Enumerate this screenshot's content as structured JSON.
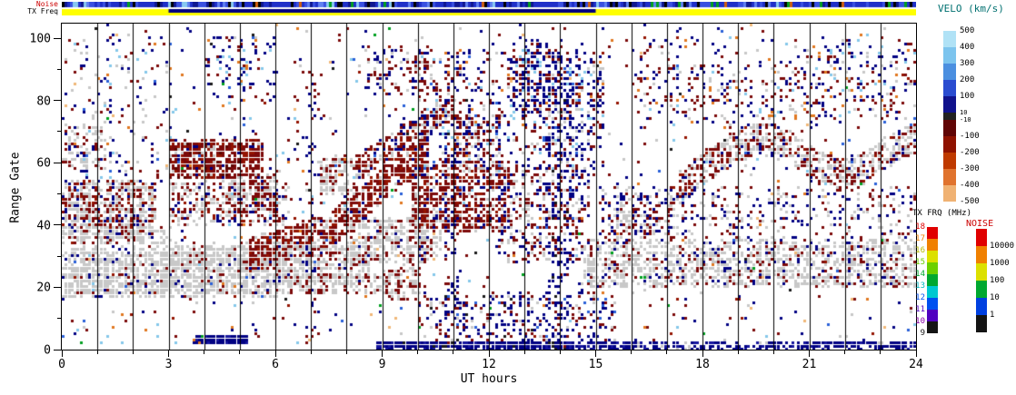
{
  "axes": {
    "x_label": "UT hours",
    "y_label": "Range Gate",
    "x_major": [
      0,
      3,
      6,
      9,
      12,
      15,
      18,
      21,
      24
    ],
    "x_tick_labels": [
      "0",
      "3",
      "6",
      "9",
      "12",
      "15",
      "18",
      "21",
      "24"
    ],
    "x_minor_step": 1,
    "y_major": [
      0,
      20,
      40,
      60,
      80,
      100
    ],
    "y_tick_labels": [
      "0",
      "20",
      "40",
      "60",
      "80",
      "100"
    ],
    "y_minor": [
      10,
      30,
      50,
      70,
      90
    ]
  },
  "strips": {
    "noise_label": "Noise",
    "noise_label_color": "#cc0000",
    "txfreq_label": "TX Freq",
    "txfreq_label_color": "#000000",
    "noise_strip_colors": [
      [
        "#2030c8",
        0.42
      ],
      [
        "#3a50e0",
        0.2
      ],
      [
        "#101890",
        0.12
      ],
      [
        "#000000",
        0.1
      ],
      [
        "#6080f0",
        0.06
      ],
      [
        "#88c8f0",
        0.05
      ],
      [
        "#00a020",
        0.025
      ],
      [
        "#d06010",
        0.025
      ]
    ],
    "txfreq_strip": {
      "base_color": "#ffff00",
      "overlay": {
        "t": [
          3,
          15
        ],
        "color": "#000080"
      }
    }
  },
  "legends": {
    "velocity": {
      "title": "VELO (km/s)",
      "title_color": "#007070",
      "labels": [
        "500",
        "400",
        "300",
        "200",
        "100",
        "10",
        "-10",
        "-100",
        "-200",
        "-300",
        "-400",
        "-500"
      ],
      "small_label_indices": [
        5,
        6
      ],
      "segment_colors": [
        "#b0e2f6",
        "#7cc4ee",
        "#4b8fe0",
        "#2a4cd0",
        "#10128c",
        "#222222",
        "#600505",
        "#8f1200",
        "#bf3a00",
        "#e0732e",
        "#f0b273"
      ],
      "segment_heights": [
        18,
        18,
        18,
        18,
        18,
        8,
        18,
        18,
        18,
        18,
        18
      ]
    },
    "txfreq": {
      "title": "TX FRQ (MHz)",
      "title_color": "#000000",
      "labels": [
        "18",
        "17",
        "16",
        "15",
        "14",
        "13",
        "12",
        "11",
        "10",
        "9"
      ],
      "segment_colors": [
        "#e00000",
        "#f08000",
        "#dce000",
        "#6cd000",
        "#00a830",
        "#00c8d0",
        "#0050f0",
        "#5000c0",
        "#141414"
      ],
      "label_colors": [
        "#e00000",
        "#f08000",
        "#b8bc00",
        "#6cd000",
        "#00a830",
        "#00b8c0",
        "#0050f0",
        "#5000c0",
        "#8800a8",
        "#141414"
      ]
    },
    "noise": {
      "title": "NOISE",
      "title_color": "#cc0000",
      "labels": [
        "10000",
        "1000",
        "100",
        "10",
        "1"
      ],
      "label_color": "#000000",
      "segment_colors": [
        "#e00000",
        "#f08000",
        "#dce000",
        "#00a830",
        "#0040e0",
        "#141414"
      ]
    }
  },
  "chart_data": {
    "type": "scatter",
    "xlabel": "UT hours",
    "ylabel": "Range Gate",
    "xlim": [
      0,
      24
    ],
    "ylim": [
      0,
      105
    ],
    "hour_gridlines": true,
    "legend_title": "VELO (km/s)",
    "velocity_scale_labels": [
      500,
      400,
      300,
      200,
      100,
      10,
      -10,
      -100,
      -200,
      -300,
      -400,
      -500
    ],
    "palette": {
      "gs": "#c8c8c8",
      "red": "#7c0a0a",
      "red2": "#941400",
      "dred": "#5a0500",
      "navy": "#000082",
      "navy2": "#16169e",
      "blue": "#2a60d8",
      "lblue": "#85c8ea",
      "org": "#e07820",
      "tan": "#f0b878",
      "blk": "#1a1a1a",
      "grn": "#00a020"
    },
    "bands": [
      {
        "t": [
          0,
          2.6
        ],
        "g": [
          36,
          54
        ],
        "n": 700,
        "mix": [
          [
            "gs",
            0.5
          ],
          [
            "red",
            0.3
          ],
          [
            "red2",
            0.08
          ],
          [
            "navy",
            0.12
          ]
        ]
      },
      {
        "t": [
          0,
          6.2
        ],
        "g": [
          17,
          32
        ],
        "n": 1400,
        "mix": [
          [
            "gs",
            0.9
          ],
          [
            "navy",
            0.06
          ],
          [
            "red",
            0.04
          ]
        ]
      },
      {
        "t": [
          2.8,
          6.2
        ],
        "g": [
          24,
          34
        ],
        "n": 280,
        "mix": [
          [
            "gs",
            0.85
          ],
          [
            "red",
            0.15
          ]
        ]
      },
      {
        "t": [
          3.0,
          5.6
        ],
        "g": [
          55,
          67
        ],
        "n": 600,
        "mix": [
          [
            "red",
            0.62
          ],
          [
            "red2",
            0.2
          ],
          [
            "dred",
            0.08
          ],
          [
            "gs",
            0.06
          ],
          [
            "navy",
            0.04
          ]
        ]
      },
      {
        "t": [
          3.0,
          6.3
        ],
        "g": [
          40,
          54
        ],
        "n": 330,
        "mix": [
          [
            "red",
            0.45
          ],
          [
            "red2",
            0.12
          ],
          [
            "gs",
            0.33
          ],
          [
            "navy",
            0.1
          ]
        ]
      },
      {
        "path": [
          [
            5.2,
            30
          ],
          [
            6.5,
            34
          ],
          [
            7.5,
            38
          ],
          [
            8.5,
            48
          ],
          [
            9.5,
            58
          ],
          [
            10.3,
            64
          ]
        ],
        "th": 11,
        "n": 900,
        "mix": [
          [
            "red",
            0.6
          ],
          [
            "red2",
            0.22
          ],
          [
            "gs",
            0.13
          ],
          [
            "navy",
            0.05
          ]
        ]
      },
      {
        "path": [
          [
            8.3,
            58
          ],
          [
            9.3,
            66
          ],
          [
            10.3,
            74
          ],
          [
            11.0,
            78
          ]
        ],
        "th": 8,
        "n": 260,
        "mix": [
          [
            "red",
            0.55
          ],
          [
            "red2",
            0.15
          ],
          [
            "navy",
            0.15
          ],
          [
            "gs",
            0.15
          ]
        ]
      },
      {
        "t": [
          6.0,
          8.6
        ],
        "g": [
          22,
          34
        ],
        "n": 430,
        "mix": [
          [
            "gs",
            0.8
          ],
          [
            "red",
            0.15
          ],
          [
            "navy",
            0.05
          ]
        ]
      },
      {
        "t": [
          8.0,
          10.6
        ],
        "g": [
          28,
          42
        ],
        "n": 380,
        "mix": [
          [
            "gs",
            0.65
          ],
          [
            "red",
            0.3
          ],
          [
            "navy",
            0.05
          ]
        ]
      },
      {
        "t": [
          9.8,
          12.6
        ],
        "g": [
          38,
          60
        ],
        "n": 720,
        "mix": [
          [
            "red",
            0.55
          ],
          [
            "red2",
            0.2
          ],
          [
            "gs",
            0.13
          ],
          [
            "navy",
            0.12
          ]
        ]
      },
      {
        "t": [
          10.0,
          14.5
        ],
        "g": [
          58,
          96
        ],
        "n": 440,
        "mix": [
          [
            "red",
            0.4
          ],
          [
            "navy",
            0.3
          ],
          [
            "lblue",
            0.08
          ],
          [
            "org",
            0.06
          ],
          [
            "gs",
            0.1
          ],
          [
            "blue",
            0.06
          ]
        ]
      },
      {
        "t": [
          12.2,
          14.8
        ],
        "g": [
          28,
          58
        ],
        "n": 360,
        "mix": [
          [
            "red",
            0.45
          ],
          [
            "navy",
            0.3
          ],
          [
            "gs",
            0.25
          ]
        ]
      },
      {
        "t": [
          13.4,
          15.2
        ],
        "g": [
          55,
          95
        ],
        "n": 300,
        "mix": [
          [
            "navy",
            0.55
          ],
          [
            "red",
            0.2
          ],
          [
            "lblue",
            0.1
          ],
          [
            "gs",
            0.15
          ]
        ]
      },
      {
        "t": [
          14.6,
          24
        ],
        "g": [
          20,
          35
        ],
        "n": 1400,
        "mix": [
          [
            "gs",
            0.74
          ],
          [
            "red",
            0.16
          ],
          [
            "navy",
            0.1
          ]
        ]
      },
      {
        "path": [
          [
            17.3,
            52
          ],
          [
            18.0,
            58
          ],
          [
            18.8,
            64
          ],
          [
            19.5,
            68
          ],
          [
            20.3,
            66
          ],
          [
            21.0,
            60
          ],
          [
            21.8,
            56
          ],
          [
            22.5,
            58
          ],
          [
            23.2,
            64
          ],
          [
            24,
            68
          ]
        ],
        "th": 10,
        "n": 800,
        "mix": [
          [
            "gs",
            0.48
          ],
          [
            "red",
            0.36
          ],
          [
            "red2",
            0.08
          ],
          [
            "navy",
            0.08
          ]
        ]
      },
      {
        "t": [
          15.0,
          17.5
        ],
        "g": [
          36,
          52
        ],
        "n": 190,
        "mix": [
          [
            "red",
            0.35
          ],
          [
            "navy",
            0.35
          ],
          [
            "gs",
            0.3
          ]
        ]
      },
      {
        "t": [
          8.8,
          16
        ],
        "g": [
          0,
          2.5
        ],
        "n": 520,
        "mix": [
          [
            "navy",
            0.8
          ],
          [
            "navy2",
            0.15
          ],
          [
            "blk",
            0.05
          ]
        ]
      },
      {
        "t": [
          16,
          24
        ],
        "g": [
          0,
          2.5
        ],
        "n": 300,
        "mix": [
          [
            "navy",
            0.78
          ],
          [
            "navy2",
            0.12
          ],
          [
            "gs",
            0.1
          ]
        ]
      },
      {
        "t": [
          3.7,
          5.2
        ],
        "g": [
          1.5,
          4.5
        ],
        "n": 400,
        "mix": [
          [
            "navy",
            0.85
          ],
          [
            "navy2",
            0.15
          ]
        ]
      },
      {
        "t": [
          0,
          24
        ],
        "g": [
          2,
          104
        ],
        "n": 950,
        "mix": [
          [
            "navy",
            0.28
          ],
          [
            "red",
            0.22
          ],
          [
            "blue",
            0.07
          ],
          [
            "lblue",
            0.09
          ],
          [
            "org",
            0.08
          ],
          [
            "gs",
            0.12
          ],
          [
            "blk",
            0.03
          ],
          [
            "grn",
            0.02
          ],
          [
            "tan",
            0.04
          ],
          [
            "red2",
            0.05
          ]
        ]
      },
      {
        "t": [
          0,
          3
        ],
        "g": [
          55,
          100
        ],
        "n": 130,
        "mix": [
          [
            "navy",
            0.45
          ],
          [
            "red",
            0.25
          ],
          [
            "lblue",
            0.12
          ],
          [
            "gs",
            0.18
          ]
        ]
      },
      {
        "t": [
          13.55,
          14.2
        ],
        "g": [
          0,
          100
        ],
        "n": 160,
        "mix": [
          [
            "navy",
            0.7
          ],
          [
            "red",
            0.2
          ],
          [
            "blk",
            0.1
          ]
        ]
      },
      {
        "t": [
          10.7,
          11.15
        ],
        "g": [
          0,
          95
        ],
        "n": 90,
        "mix": [
          [
            "navy",
            0.6
          ],
          [
            "red",
            0.4
          ]
        ]
      },
      {
        "t": [
          6.85,
          7.25
        ],
        "g": [
          0,
          90
        ],
        "n": 60,
        "mix": [
          [
            "navy",
            0.55
          ],
          [
            "red",
            0.45
          ]
        ]
      },
      {
        "t": [
          20,
          24
        ],
        "g": [
          75,
          100
        ],
        "n": 150,
        "mix": [
          [
            "navy",
            0.35
          ],
          [
            "red",
            0.3
          ],
          [
            "lblue",
            0.15
          ],
          [
            "org",
            0.12
          ],
          [
            "gs",
            0.08
          ]
        ]
      },
      {
        "t": [
          16,
          20
        ],
        "g": [
          70,
          100
        ],
        "n": 130,
        "mix": [
          [
            "navy",
            0.4
          ],
          [
            "red",
            0.3
          ],
          [
            "lblue",
            0.1
          ],
          [
            "org",
            0.1
          ],
          [
            "gs",
            0.1
          ]
        ]
      },
      {
        "t": [
          0,
          1.2
        ],
        "g": [
          58,
          72
        ],
        "n": 100,
        "mix": [
          [
            "gs",
            0.55
          ],
          [
            "red",
            0.35
          ],
          [
            "navy",
            0.1
          ]
        ]
      },
      {
        "t": [
          4.6,
          6.0
        ],
        "g": [
          44,
          56
        ],
        "n": 200,
        "mix": [
          [
            "red",
            0.55
          ],
          [
            "gs",
            0.35
          ],
          [
            "navy",
            0.1
          ]
        ]
      },
      {
        "t": [
          7.2,
          8.3
        ],
        "g": [
          50,
          62
        ],
        "n": 150,
        "mix": [
          [
            "gs",
            0.55
          ],
          [
            "red",
            0.45
          ]
        ]
      },
      {
        "t": [
          9.0,
          10.0
        ],
        "g": [
          16,
          26
        ],
        "n": 110,
        "mix": [
          [
            "red",
            0.5
          ],
          [
            "gs",
            0.5
          ]
        ]
      },
      {
        "t": [
          10,
          15.5
        ],
        "g": [
          3,
          18
        ],
        "n": 300,
        "mix": [
          [
            "navy",
            0.5
          ],
          [
            "red",
            0.28
          ],
          [
            "gs",
            0.12
          ],
          [
            "blk",
            0.05
          ],
          [
            "blue",
            0.05
          ]
        ]
      },
      {
        "t": [
          15.5,
          24
        ],
        "g": [
          36,
          52
        ],
        "n": 330,
        "mix": [
          [
            "gs",
            0.4
          ],
          [
            "red",
            0.3
          ],
          [
            "navy",
            0.3
          ]
        ]
      },
      {
        "t": [
          17,
          24
        ],
        "g": [
          74,
          92
        ],
        "n": 170,
        "mix": [
          [
            "red",
            0.4
          ],
          [
            "navy",
            0.3
          ],
          [
            "gs",
            0.2
          ],
          [
            "org",
            0.1
          ]
        ]
      },
      {
        "t": [
          0.0,
          3.0
        ],
        "g": [
          33,
          40
        ],
        "n": 150,
        "mix": [
          [
            "gs",
            0.8
          ],
          [
            "red",
            0.2
          ]
        ]
      },
      {
        "t": [
          6.3,
          9.0
        ],
        "g": [
          18,
          24
        ],
        "n": 160,
        "mix": [
          [
            "gs",
            0.75
          ],
          [
            "red",
            0.25
          ]
        ]
      },
      {
        "t": [
          11.0,
          12.3
        ],
        "g": [
          60,
          75
        ],
        "n": 140,
        "mix": [
          [
            "red",
            0.5
          ],
          [
            "navy",
            0.3
          ],
          [
            "gs",
            0.2
          ]
        ]
      },
      {
        "t": [
          12.6,
          13.4
        ],
        "g": [
          75,
          100
        ],
        "n": 120,
        "mix": [
          [
            "navy",
            0.5
          ],
          [
            "red",
            0.3
          ],
          [
            "lblue",
            0.2
          ]
        ]
      },
      {
        "t": [
          8.5,
          10.5
        ],
        "g": [
          82,
          97
        ],
        "n": 110,
        "mix": [
          [
            "red",
            0.55
          ],
          [
            "navy",
            0.25
          ],
          [
            "gs",
            0.2
          ]
        ]
      },
      {
        "t": [
          4,
          6
        ],
        "g": [
          80,
          100
        ],
        "n": 80,
        "mix": [
          [
            "navy",
            0.5
          ],
          [
            "lblue",
            0.2
          ],
          [
            "red",
            0.2
          ],
          [
            "org",
            0.1
          ]
        ]
      }
    ]
  }
}
